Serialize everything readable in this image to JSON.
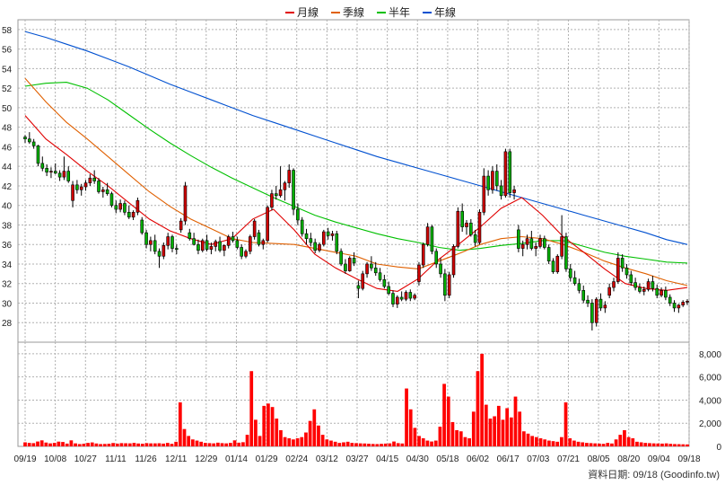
{
  "chart_data": {
    "type": "candlestick",
    "legend": [
      {
        "name": "月線",
        "color": "#e00000"
      },
      {
        "name": "季線",
        "color": "#e06000"
      },
      {
        "name": "半年",
        "color": "#00c000"
      },
      {
        "name": "年線",
        "color": "#0050d0"
      }
    ],
    "price_axis": {
      "ticks": [
        28,
        30,
        32,
        34,
        36,
        38,
        40,
        42,
        44,
        46,
        48,
        50,
        52,
        54,
        56,
        58
      ],
      "ylim": [
        26,
        59
      ]
    },
    "volume_axis": {
      "ticks": [
        "0",
        "2,000",
        "4,000",
        "6,000",
        "8,000"
      ],
      "ylim": [
        0,
        9000
      ]
    },
    "x_ticks": [
      "09/19",
      "10/08",
      "10/27",
      "11/11",
      "11/26",
      "12/11",
      "12/29",
      "01/14",
      "01/29",
      "02/24",
      "03/12",
      "03/27",
      "04/15",
      "04/30",
      "05/18",
      "06/02",
      "06/17",
      "07/03",
      "07/21",
      "08/05",
      "08/20",
      "09/04",
      "09/18"
    ],
    "ma_lines": {
      "年線": [
        57.8,
        57.2,
        56.5,
        55.8,
        55.0,
        54.2,
        53.3,
        52.4,
        51.6,
        50.8,
        50.0,
        49.2,
        48.5,
        47.8,
        47.1,
        46.4,
        45.7,
        45.0,
        44.4,
        43.8,
        43.2,
        42.6,
        42.0,
        41.4,
        40.8,
        40.2,
        39.6,
        39.0,
        38.4,
        37.8,
        37.2,
        36.5,
        36.0
      ],
      "半年": [
        52.2,
        52.5,
        52.6,
        52.0,
        50.8,
        49.3,
        47.8,
        46.4,
        45.1,
        43.9,
        42.8,
        41.8,
        40.8,
        39.9,
        39.0,
        38.3,
        37.7,
        37.1,
        36.6,
        36.2,
        35.7,
        35.4,
        35.6,
        35.9,
        36.1,
        36.4,
        36.4,
        35.8,
        35.2,
        34.8,
        34.5,
        34.2,
        34.1
      ],
      "季線": [
        53.0,
        50.6,
        48.5,
        46.8,
        45.0,
        43.2,
        41.4,
        39.9,
        38.6,
        37.6,
        36.6,
        36.2,
        36.1,
        36.0,
        35.6,
        35.2,
        34.8,
        34.0,
        33.7,
        33.5,
        34.3,
        35.1,
        36.0,
        36.6,
        36.8,
        36.6,
        36.0,
        35.2,
        34.3,
        33.6,
        33.0,
        32.3,
        31.8
      ],
      "月線": [
        49.2,
        46.8,
        45.2,
        43.5,
        42.0,
        40.3,
        38.6,
        37.4,
        36.6,
        36.0,
        36.6,
        38.6,
        39.6,
        37.5,
        35.0,
        33.6,
        32.5,
        31.5,
        31.2,
        32.5,
        34.5,
        36.1,
        37.8,
        39.7,
        40.8,
        39.0,
        36.8,
        35.2,
        33.5,
        32.0,
        31.5,
        31.3,
        31.6
      ]
    },
    "ohlc": [
      [
        47.0,
        47.2,
        46.4,
        46.8
      ],
      [
        46.8,
        47.5,
        46.3,
        46.5
      ],
      [
        46.5,
        46.8,
        45.8,
        46.1
      ],
      [
        46.1,
        46.2,
        44.0,
        44.3
      ],
      [
        44.3,
        45.0,
        43.5,
        43.8
      ],
      [
        43.8,
        44.2,
        43.0,
        43.4
      ],
      [
        43.4,
        43.9,
        42.8,
        43.5
      ],
      [
        43.5,
        44.3,
        43.2,
        43.3
      ],
      [
        43.3,
        43.6,
        42.5,
        42.9
      ],
      [
        42.9,
        45.0,
        42.6,
        43.5
      ],
      [
        43.5,
        44.0,
        42.3,
        42.5
      ],
      [
        40.5,
        42.5,
        39.8,
        42.1
      ],
      [
        42.1,
        42.6,
        41.2,
        41.6
      ],
      [
        41.6,
        42.2,
        41.0,
        41.9
      ],
      [
        41.9,
        42.6,
        41.5,
        42.3
      ],
      [
        42.3,
        43.2,
        42.0,
        42.8
      ],
      [
        42.8,
        43.6,
        42.2,
        42.5
      ],
      [
        42.5,
        42.8,
        41.2,
        41.4
      ],
      [
        41.4,
        41.9,
        40.8,
        41.6
      ],
      [
        41.6,
        42.3,
        41.0,
        41.2
      ],
      [
        41.2,
        41.4,
        39.8,
        40.0
      ],
      [
        40.0,
        40.5,
        39.2,
        39.6
      ],
      [
        39.6,
        40.6,
        39.3,
        40.2
      ],
      [
        40.2,
        40.5,
        39.0,
        39.3
      ],
      [
        39.3,
        40.0,
        38.6,
        38.8
      ],
      [
        38.8,
        39.5,
        38.5,
        39.3
      ],
      [
        39.3,
        40.8,
        39.0,
        40.5
      ],
      [
        38.5,
        38.8,
        37.0,
        37.2
      ],
      [
        37.2,
        37.5,
        35.6,
        36.0
      ],
      [
        36.0,
        36.8,
        35.3,
        36.4
      ],
      [
        36.4,
        37.0,
        35.0,
        35.3
      ],
      [
        35.3,
        35.6,
        33.6,
        34.8
      ],
      [
        34.8,
        36.2,
        34.5,
        35.9
      ],
      [
        35.9,
        37.2,
        35.5,
        36.8
      ],
      [
        36.8,
        37.0,
        35.2,
        35.6
      ],
      [
        35.6,
        36.0,
        35.0,
        35.5
      ],
      [
        37.5,
        38.7,
        37.2,
        38.4
      ],
      [
        38.4,
        42.4,
        38.0,
        42.0
      ],
      [
        37.2,
        37.6,
        36.4,
        36.6
      ],
      [
        36.6,
        37.2,
        35.9,
        36.0
      ],
      [
        36.0,
        36.5,
        35.0,
        35.4
      ],
      [
        35.4,
        36.6,
        35.2,
        36.4
      ],
      [
        36.4,
        37.0,
        35.3,
        35.5
      ],
      [
        35.5,
        36.2,
        35.0,
        35.8
      ],
      [
        35.8,
        36.5,
        35.3,
        36.3
      ],
      [
        36.3,
        36.8,
        35.2,
        35.4
      ],
      [
        35.4,
        36.0,
        34.8,
        35.9
      ],
      [
        35.9,
        37.0,
        35.6,
        36.8
      ],
      [
        36.8,
        37.3,
        36.2,
        36.4
      ],
      [
        36.4,
        36.8,
        35.5,
        35.7
      ],
      [
        35.7,
        36.0,
        34.5,
        34.8
      ],
      [
        34.8,
        35.5,
        34.6,
        35.3
      ],
      [
        35.3,
        37.0,
        35.0,
        36.8
      ],
      [
        36.8,
        38.6,
        36.5,
        38.4
      ],
      [
        37.2,
        37.5,
        35.8,
        36.0
      ],
      [
        36.0,
        36.6,
        35.5,
        36.4
      ],
      [
        36.4,
        40.0,
        36.2,
        39.8
      ],
      [
        39.8,
        41.6,
        39.5,
        41.2
      ],
      [
        41.2,
        42.0,
        40.6,
        41.0
      ],
      [
        41.0,
        44.0,
        40.8,
        41.6
      ],
      [
        41.6,
        42.5,
        40.5,
        42.3
      ],
      [
        42.3,
        44.2,
        41.8,
        43.6
      ],
      [
        43.6,
        43.8,
        39.0,
        39.6
      ],
      [
        39.6,
        40.2,
        38.0,
        38.5
      ],
      [
        38.5,
        38.8,
        36.8,
        37.1
      ],
      [
        37.1,
        37.6,
        36.0,
        36.6
      ],
      [
        36.6,
        37.2,
        35.8,
        36.2
      ],
      [
        36.2,
        36.6,
        35.1,
        35.4
      ],
      [
        35.4,
        36.2,
        35.2,
        36.0
      ],
      [
        36.0,
        37.5,
        35.8,
        37.3
      ],
      [
        37.3,
        37.7,
        36.5,
        36.9
      ],
      [
        36.9,
        37.4,
        36.4,
        37.1
      ],
      [
        37.1,
        37.4,
        35.0,
        35.3
      ],
      [
        35.3,
        35.6,
        33.8,
        34.0
      ],
      [
        34.0,
        34.5,
        33.0,
        33.3
      ],
      [
        33.3,
        34.8,
        33.2,
        34.6
      ],
      [
        34.6,
        35.2,
        33.8,
        34.1
      ],
      [
        31.8,
        32.3,
        30.5,
        31.5
      ],
      [
        31.5,
        33.3,
        31.3,
        33.0
      ],
      [
        33.0,
        34.2,
        32.6,
        34.0
      ],
      [
        34.0,
        34.8,
        33.3,
        33.6
      ],
      [
        33.6,
        34.2,
        32.8,
        33.1
      ],
      [
        33.1,
        33.6,
        32.2,
        32.4
      ],
      [
        32.4,
        32.9,
        31.5,
        31.7
      ],
      [
        31.7,
        32.2,
        30.8,
        31.0
      ],
      [
        31.0,
        31.3,
        29.6,
        29.9
      ],
      [
        29.9,
        30.8,
        29.5,
        30.6
      ],
      [
        30.6,
        31.2,
        30.2,
        30.4
      ],
      [
        30.4,
        31.3,
        30.2,
        31.1
      ],
      [
        31.1,
        31.4,
        30.2,
        30.5
      ],
      [
        30.5,
        31.0,
        30.3,
        30.8
      ],
      [
        32.2,
        34.2,
        31.8,
        33.9
      ],
      [
        33.9,
        36.2,
        33.6,
        36.0
      ],
      [
        36.0,
        38.2,
        35.8,
        37.8
      ],
      [
        37.8,
        38.0,
        35.0,
        35.3
      ],
      [
        35.3,
        35.6,
        33.6,
        34.0
      ],
      [
        34.0,
        34.6,
        32.6,
        33.0
      ],
      [
        33.0,
        33.5,
        30.2,
        30.8
      ],
      [
        30.8,
        33.2,
        30.5,
        32.9
      ],
      [
        32.9,
        36.0,
        32.6,
        35.8
      ],
      [
        35.8,
        39.8,
        35.6,
        39.4
      ],
      [
        39.4,
        40.2,
        37.3,
        37.8
      ],
      [
        37.8,
        38.5,
        37.0,
        38.2
      ],
      [
        38.2,
        38.6,
        36.8,
        37.0
      ],
      [
        37.0,
        37.5,
        35.8,
        36.2
      ],
      [
        36.2,
        39.6,
        36.0,
        39.3
      ],
      [
        39.3,
        43.8,
        39.0,
        43.0
      ],
      [
        43.0,
        43.6,
        41.0,
        41.6
      ],
      [
        41.6,
        44.0,
        41.2,
        43.5
      ],
      [
        43.5,
        44.2,
        41.5,
        42.0
      ],
      [
        42.0,
        42.6,
        40.6,
        41.0
      ],
      [
        41.0,
        45.8,
        40.8,
        45.5
      ],
      [
        45.5,
        45.8,
        40.8,
        41.3
      ],
      [
        41.3,
        42.0,
        40.6,
        41.6
      ],
      [
        37.5,
        38.0,
        35.2,
        35.6
      ],
      [
        35.6,
        36.4,
        34.8,
        36.0
      ],
      [
        36.0,
        37.0,
        35.5,
        36.6
      ],
      [
        36.6,
        37.4,
        35.4,
        35.6
      ],
      [
        35.6,
        36.2,
        34.8,
        35.8
      ],
      [
        35.8,
        37.0,
        35.6,
        36.6
      ],
      [
        36.6,
        36.9,
        35.5,
        35.7
      ],
      [
        35.7,
        36.0,
        34.0,
        34.3
      ],
      [
        34.3,
        34.6,
        33.0,
        33.2
      ],
      [
        33.2,
        35.0,
        33.0,
        34.8
      ],
      [
        34.8,
        39.0,
        34.5,
        36.8
      ],
      [
        36.8,
        37.2,
        33.2,
        33.5
      ],
      [
        33.5,
        34.0,
        32.2,
        32.6
      ],
      [
        32.6,
        33.3,
        31.8,
        32.0
      ],
      [
        32.0,
        32.5,
        31.0,
        31.3
      ],
      [
        31.3,
        31.8,
        30.0,
        30.3
      ],
      [
        30.3,
        30.8,
        29.6,
        30.0
      ],
      [
        30.0,
        30.4,
        27.2,
        28.0
      ],
      [
        28.0,
        30.6,
        27.6,
        30.4
      ],
      [
        30.4,
        31.0,
        29.2,
        29.5
      ],
      [
        29.5,
        30.2,
        29.0,
        29.8
      ],
      [
        30.8,
        32.0,
        30.5,
        31.6
      ],
      [
        31.6,
        32.6,
        31.2,
        32.2
      ],
      [
        32.2,
        35.2,
        32.0,
        34.6
      ],
      [
        34.6,
        35.0,
        33.2,
        33.6
      ],
      [
        33.6,
        34.0,
        32.5,
        32.9
      ],
      [
        32.9,
        33.3,
        31.8,
        32.1
      ],
      [
        32.1,
        32.6,
        31.3,
        31.6
      ],
      [
        31.6,
        32.0,
        31.0,
        31.2
      ],
      [
        31.2,
        31.7,
        30.8,
        31.4
      ],
      [
        31.4,
        32.5,
        31.2,
        32.2
      ],
      [
        32.2,
        32.8,
        31.2,
        31.5
      ],
      [
        31.5,
        31.9,
        30.5,
        30.8
      ],
      [
        30.8,
        31.6,
        30.6,
        31.3
      ],
      [
        31.3,
        31.7,
        30.3,
        30.6
      ],
      [
        30.6,
        30.9,
        29.7,
        30.0
      ],
      [
        30.0,
        30.3,
        29.1,
        29.5
      ],
      [
        29.5,
        29.9,
        29.0,
        29.8
      ],
      [
        29.8,
        30.3,
        29.6,
        30.1
      ],
      [
        30.1,
        30.4,
        29.8,
        30.2
      ]
    ],
    "volume": [
      350,
      300,
      280,
      420,
      520,
      330,
      260,
      300,
      410,
      380,
      240,
      520,
      260,
      200,
      230,
      300,
      340,
      250,
      200,
      210,
      230,
      290,
      240,
      280,
      270,
      260,
      300,
      250,
      230,
      280,
      260,
      260,
      270,
      240,
      300,
      220,
      400,
      3800,
      1500,
      900,
      600,
      500,
      400,
      300,
      280,
      260,
      320,
      280,
      260,
      300,
      520,
      320,
      360,
      1000,
      6500,
      2300,
      900,
      3500,
      3700,
      3400,
      2400,
      1400,
      800,
      700,
      600,
      700,
      800,
      1200,
      2200,
      3200,
      1800,
      1000,
      600,
      500,
      400,
      300,
      350,
      400,
      300,
      280,
      260,
      250,
      230,
      210,
      200,
      220,
      240,
      260,
      420,
      280,
      250,
      5000,
      3200,
      1600,
      900,
      700,
      500,
      420,
      500,
      1700,
      5400,
      4300,
      2100,
      1400,
      1300,
      800,
      700,
      3000,
      6500,
      8000,
      3600,
      2400,
      2600,
      3500,
      2300,
      3300,
      2500,
      4300,
      3000,
      1300,
      1100,
      900,
      800,
      700,
      600,
      500,
      450,
      400,
      800,
      3800,
      700,
      500,
      400,
      350,
      300,
      280,
      260,
      240,
      220,
      300,
      250,
      600,
      1000,
      1400,
      800,
      700,
      400,
      350,
      300,
      280,
      260,
      250,
      240,
      260,
      220,
      200,
      190,
      180,
      170
    ]
  },
  "footer": {
    "text": "資料日期: 09/18  (Goodinfo.tw)"
  }
}
